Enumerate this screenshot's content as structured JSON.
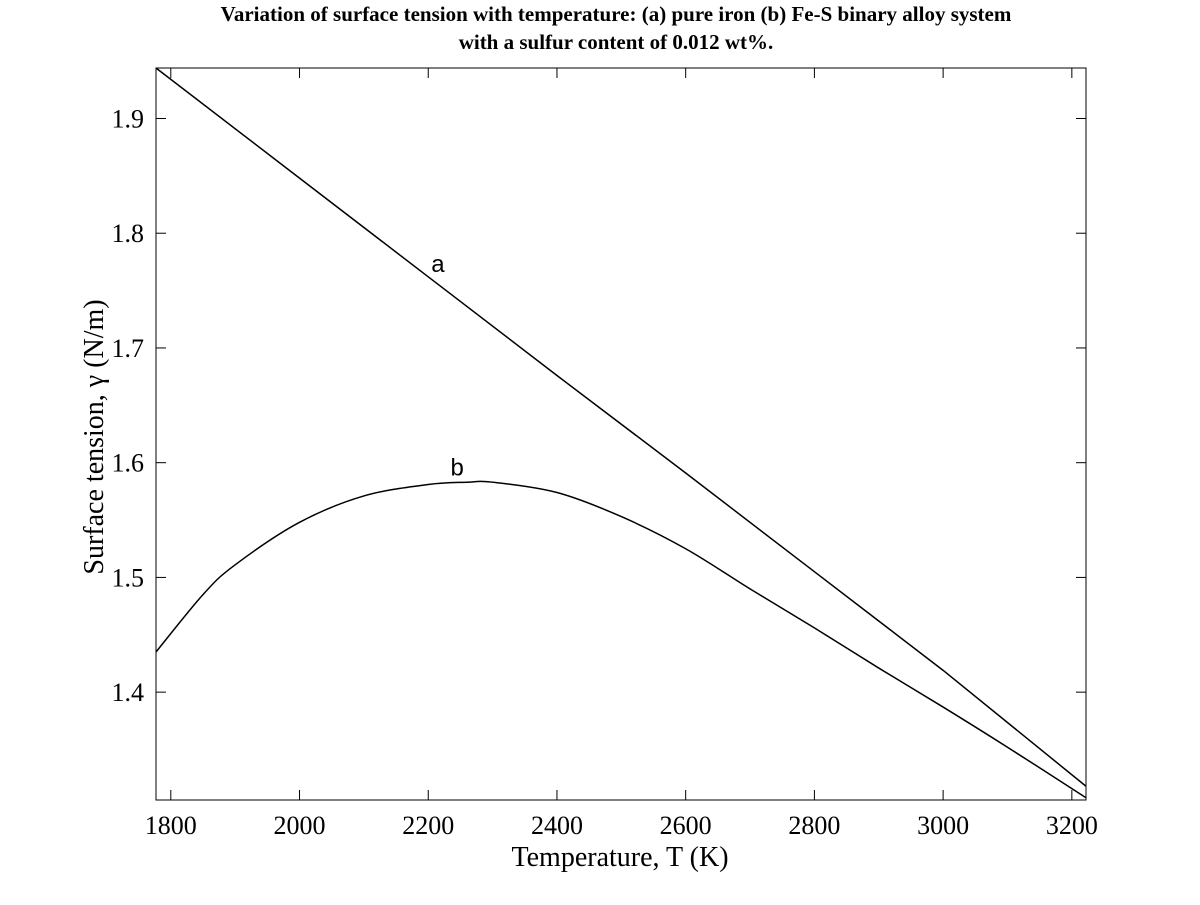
{
  "chart_data": {
    "type": "line",
    "title": "Variation of surface tension with temperature: (a) pure iron (b) Fe-S binary alloy system",
    "subtitle": "with a sulfur content of 0.012 wt%.",
    "xlabel": "Temperature, T (K)",
    "ylabel": "Surface tension, γ (N/m)",
    "xlim": [
      1777,
      3222
    ],
    "ylim": [
      1.306,
      1.944
    ],
    "grid": false,
    "x_ticks": [
      1800,
      2000,
      2200,
      2400,
      2600,
      2800,
      3000,
      3200
    ],
    "x_tick_labels": [
      "1800",
      "2000",
      "2200",
      "2400",
      "2600",
      "2800",
      "3000",
      "3200"
    ],
    "y_ticks": [
      1.4,
      1.5,
      1.6,
      1.7,
      1.8,
      1.9
    ],
    "y_tick_labels": [
      "1.4",
      "1.5",
      "1.6",
      "1.7",
      "1.8",
      "1.9"
    ],
    "series": [
      {
        "label": "a",
        "color": "#000000",
        "x": [
          1777,
          2000,
          2200,
          2400,
          2600,
          2800,
          3000,
          3222
        ],
        "y": [
          1.944,
          1.848,
          1.762,
          1.676,
          1.591,
          1.505,
          1.419,
          1.318
        ]
      },
      {
        "label": "b",
        "color": "#000000",
        "x": [
          1777,
          1850,
          1900,
          2000,
          2100,
          2200,
          2260,
          2300,
          2400,
          2500,
          2600,
          2700,
          2800,
          2900,
          3000,
          3100,
          3222
        ],
        "y": [
          1.435,
          1.485,
          1.511,
          1.548,
          1.571,
          1.581,
          1.583,
          1.583,
          1.574,
          1.553,
          1.525,
          1.49,
          1.456,
          1.421,
          1.387,
          1.352,
          1.308
        ]
      }
    ],
    "annotations": [
      {
        "text": "a",
        "x": 2215,
        "y": 1.766
      },
      {
        "text": "b",
        "x": 2245,
        "y": 1.589
      }
    ]
  }
}
